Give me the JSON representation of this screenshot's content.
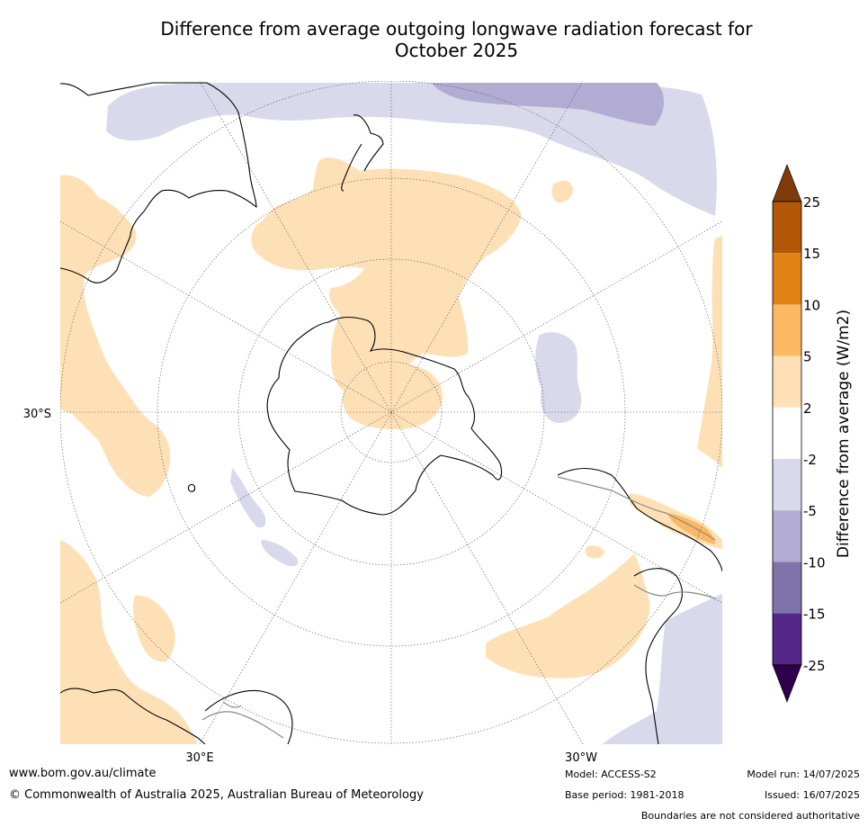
{
  "title": {
    "line1": "Difference from average outgoing longwave radiation forecast for",
    "line2": "October 2025"
  },
  "map": {
    "lat_label": "30°S",
    "lon_labels": [
      "30°E",
      "30°W"
    ]
  },
  "colorbar": {
    "label": "Difference from average (W/m2)",
    "ticks": [
      "25",
      "15",
      "10",
      "5",
      "2",
      "-2",
      "-5",
      "-10",
      "-15",
      "-25"
    ],
    "colors": {
      "over": "#7f3b08",
      "b15_25": "#b35806",
      "b10_15": "#e08214",
      "b5_10": "#fdb863",
      "b2_5": "#fee0b6",
      "bn2_2": "#ffffff",
      "bn5_n2": "#d8daeb",
      "bn10_n5": "#b2abd2",
      "bn15_n10": "#8073ac",
      "bn25_n15": "#542788",
      "under": "#2d004b"
    }
  },
  "footer": {
    "website": "www.bom.gov.au/climate",
    "copyright": "© Commonwealth of Australia 2025, Australian Bureau of Meteorology",
    "model": "Model: ACCESS-S2",
    "base_period": "Base period: 1981-2018",
    "model_run": "Model run: 14/07/2025",
    "issued": "Issued: 16/07/2025",
    "disclaimer": "Boundaries are not considered authoritative"
  }
}
